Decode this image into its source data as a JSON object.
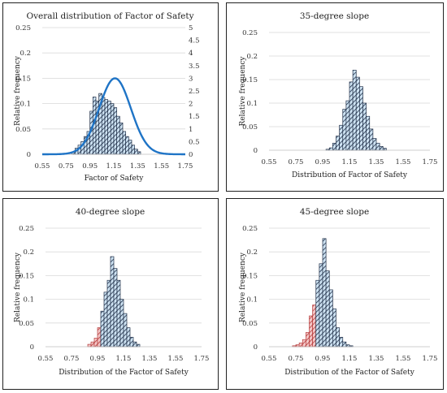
{
  "colors": {
    "blue_fill": "#cfe4f4",
    "red_fill": "#f4c7c7",
    "hatch": "#1f2e47",
    "red_hatch": "#b53a3a",
    "curve": "#1f74c6",
    "grid": "#d9d9d9"
  },
  "chart_data": [
    {
      "type": "bar",
      "title": "Overall distribution of Factor of Safety",
      "xlabel": "Factor of Safety",
      "ylabel": "Relative frequency",
      "x_ticks": [
        "0.55",
        "0.75",
        "0.95",
        "1.15",
        "1.35",
        "1.55",
        "1.75"
      ],
      "y_ticks": [
        "0",
        "0.05",
        "0.1",
        "0.15",
        "0.2",
        "0.25"
      ],
      "ylim": [
        0,
        0.25
      ],
      "y2_ticks": [
        "0",
        "0.5",
        "1",
        "1.5",
        "2",
        "2.5",
        "3",
        "3.5",
        "4",
        "4.5",
        "5"
      ],
      "y2lim": [
        0,
        5
      ],
      "x_range": [
        0.55,
        1.75
      ],
      "bin_width": 0.025,
      "bins_start": 0.8,
      "values": [
        0.005,
        0.012,
        0.018,
        0.025,
        0.035,
        0.045,
        0.085,
        0.113,
        0.105,
        0.12,
        0.112,
        0.108,
        0.105,
        0.1,
        0.092,
        0.075,
        0.062,
        0.045,
        0.035,
        0.028,
        0.018,
        0.01,
        0.005
      ],
      "red_bins": 0,
      "curve": {
        "type": "normal",
        "mean": 1.16,
        "sd": 0.133,
        "scale": "secondary_axis"
      },
      "grid": true
    },
    {
      "type": "bar",
      "title": "35-degree slope",
      "xlabel": "Distribution of Factor of Safety",
      "ylabel": "Relative frequency",
      "x_ticks": [
        "0.55",
        "0.75",
        "0.95",
        "1.15",
        "1.35",
        "1.55",
        "1.75"
      ],
      "y_ticks": [
        "0",
        "0.05",
        "0.1",
        "0.15",
        "0.2",
        "0.25"
      ],
      "ylim": [
        0,
        0.25
      ],
      "x_range": [
        0.55,
        1.75
      ],
      "bin_width": 0.025,
      "bins_start": 0.975,
      "values": [
        0.002,
        0.005,
        0.015,
        0.03,
        0.053,
        0.087,
        0.105,
        0.145,
        0.17,
        0.155,
        0.135,
        0.1,
        0.072,
        0.045,
        0.025,
        0.015,
        0.008,
        0.004
      ],
      "red_bins": 0,
      "grid": true
    },
    {
      "type": "bar",
      "title": "40-degree slope",
      "xlabel": "Distribution of the Factor of Safety",
      "ylabel": "Relative frequency",
      "x_ticks": [
        "0.55",
        "0.75",
        "0.95",
        "1.15",
        "1.35",
        "1.55",
        "1.75"
      ],
      "y_ticks": [
        "0",
        "0.05",
        "0.1",
        "0.15",
        "0.2",
        "0.25"
      ],
      "ylim": [
        0,
        0.25
      ],
      "x_range": [
        0.55,
        1.75
      ],
      "bin_width": 0.025,
      "bins_start": 0.875,
      "values": [
        0.005,
        0.01,
        0.018,
        0.04,
        0.075,
        0.115,
        0.14,
        0.19,
        0.165,
        0.14,
        0.1,
        0.07,
        0.04,
        0.02,
        0.01,
        0.005
      ],
      "red_bins": 4,
      "grid": true
    },
    {
      "type": "bar",
      "title": "45-degree slope",
      "xlabel": "Distribution of the Factor of Safety",
      "ylabel": "Relative frequency",
      "x_ticks": [
        "0.55",
        "0.75",
        "0.95",
        "1.15",
        "1.35",
        "1.55",
        "1.75"
      ],
      "y_ticks": [
        "0",
        "0.05",
        "0.1",
        "0.15",
        "0.2",
        "0.25"
      ],
      "ylim": [
        0,
        0.25
      ],
      "x_range": [
        0.55,
        1.75
      ],
      "bin_width": 0.025,
      "bins_start": 0.725,
      "values": [
        0.002,
        0.004,
        0.008,
        0.015,
        0.03,
        0.065,
        0.088,
        0.14,
        0.175,
        0.228,
        0.16,
        0.12,
        0.08,
        0.04,
        0.02,
        0.01,
        0.004,
        0.002
      ],
      "red_bins": 7,
      "grid": true
    }
  ]
}
